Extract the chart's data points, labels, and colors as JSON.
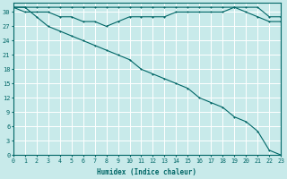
{
  "xlabel": "Humidex (Indice chaleur)",
  "ylabel": "",
  "bg_color": "#c8eaea",
  "grid_color": "#ffffff",
  "line_color": "#006666",
  "x_values": [
    0,
    1,
    2,
    3,
    4,
    5,
    6,
    7,
    8,
    9,
    10,
    11,
    12,
    13,
    14,
    15,
    16,
    17,
    18,
    19,
    20,
    21,
    22,
    23
  ],
  "line1": [
    31,
    31,
    31,
    31,
    31,
    31,
    31,
    31,
    31,
    31,
    31,
    31,
    31,
    31,
    31,
    31,
    31,
    31,
    31,
    31,
    31,
    31,
    29,
    29
  ],
  "line2": [
    31,
    30,
    30,
    30,
    29,
    29,
    28,
    28,
    27,
    28,
    29,
    29,
    29,
    29,
    30,
    30,
    30,
    30,
    30,
    31,
    30,
    29,
    28,
    28
  ],
  "line3": [
    31,
    31,
    29,
    27,
    26,
    25,
    24,
    23,
    22,
    21,
    20,
    18,
    17,
    16,
    15,
    14,
    12,
    11,
    10,
    8,
    7,
    5,
    1,
    0
  ],
  "ylim": [
    0,
    32
  ],
  "xlim": [
    0,
    23
  ],
  "yticks": [
    0,
    3,
    6,
    9,
    12,
    15,
    18,
    21,
    24,
    27,
    30
  ],
  "xticks": [
    0,
    1,
    2,
    3,
    4,
    5,
    6,
    7,
    8,
    9,
    10,
    11,
    12,
    13,
    14,
    15,
    16,
    17,
    18,
    19,
    20,
    21,
    22,
    23
  ]
}
